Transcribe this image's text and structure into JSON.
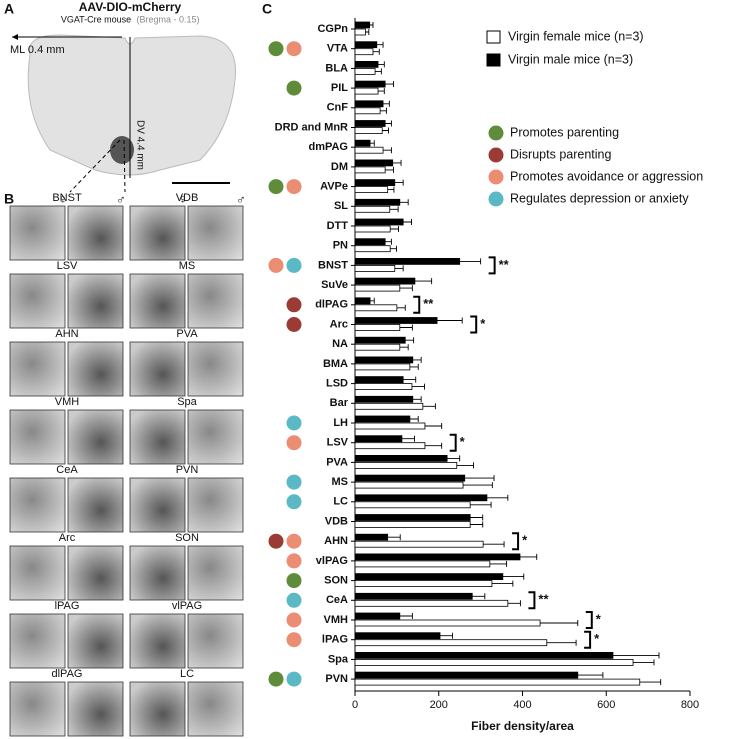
{
  "panels": {
    "a": "A",
    "b": "B",
    "c": "C"
  },
  "brain": {
    "title": "AAV-DIO-mCherry",
    "subtitle": "VGAT-Cre mouse",
    "bregma": "(Bregma - 0.15)",
    "ml": "ML 0.4 mm",
    "dv": "DV 4.4 mm"
  },
  "micrographs": [
    "BNST",
    "VDB",
    "LSV",
    "MS",
    "AHN",
    "PVA",
    "VMH",
    "Spa",
    "CeA",
    "PVN",
    "Arc",
    "SON",
    "lPAG",
    "vlPAG",
    "dlPAG",
    "LC"
  ],
  "sex_symbols": [
    "♀",
    "♂"
  ],
  "chart_data": {
    "type": "hbar",
    "x_label": "Fiber density/area",
    "categories": [
      "CGPn",
      "VTA",
      "BLA",
      "PIL",
      "CnF",
      "DRD and MnR",
      "dmPAG",
      "DM",
      "AVPe",
      "SL",
      "DTT",
      "PN",
      "BNST",
      "SuVe",
      "dlPAG",
      "Arc",
      "NA",
      "BMA",
      "LSD",
      "Bar",
      "LH",
      "LSV",
      "PVA",
      "MS",
      "LC",
      "VDB",
      "AHN",
      "vlPAG",
      "SON",
      "CeA",
      "VMH",
      "lPAG",
      "Spa",
      "PVN"
    ],
    "series": [
      {
        "name": "Virgin male mice (n=3)",
        "color": "#000000",
        "values": [
          35,
          52,
          55,
          72,
          67,
          72,
          36,
          90,
          95,
          107,
          115,
          72,
          250,
          143,
          36,
          196,
          120,
          138,
          115,
          138,
          131,
          112,
          220,
          262,
          315,
          275,
          78,
          394,
          353,
          280,
          107,
          203,
          616,
          532
        ],
        "errors": [
          8,
          15,
          15,
          20,
          15,
          15,
          10,
          20,
          20,
          20,
          20,
          15,
          50,
          40,
          10,
          60,
          20,
          20,
          30,
          20,
          20,
          30,
          30,
          70,
          50,
          30,
          30,
          40,
          50,
          30,
          30,
          30,
          110,
          60
        ]
      },
      {
        "name": "Virgin female mice (n=3)",
        "color": "#ffffff",
        "values": [
          25,
          43,
          48,
          55,
          60,
          65,
          67,
          72,
          78,
          83,
          84,
          84,
          95,
          107,
          100,
          107,
          107,
          131,
          136,
          162,
          167,
          167,
          243,
          258,
          275,
          275,
          306,
          322,
          327,
          365,
          442,
          458,
          664,
          680
        ],
        "errors": [
          8,
          15,
          15,
          15,
          15,
          15,
          20,
          20,
          15,
          20,
          20,
          15,
          20,
          30,
          20,
          30,
          20,
          20,
          30,
          30,
          40,
          40,
          40,
          70,
          50,
          30,
          50,
          40,
          50,
          30,
          90,
          70,
          50,
          50
        ]
      }
    ],
    "xlim": [
      0,
      800
    ],
    "xticks": [
      0,
      200,
      400,
      600,
      800
    ],
    "annotations": [
      {
        "category": "BNST",
        "label": "**"
      },
      {
        "category": "dlPAG",
        "label": "**"
      },
      {
        "category": "Arc",
        "label": "*"
      },
      {
        "category": "LSV",
        "label": "*"
      },
      {
        "category": "AHN",
        "label": "*"
      },
      {
        "category": "CeA",
        "label": "**"
      },
      {
        "category": "VMH",
        "label": "*"
      },
      {
        "category": "lPAG",
        "label": "*"
      }
    ],
    "roles": [
      {
        "name": "Promotes parenting",
        "color": "#5f8c3a"
      },
      {
        "name": "Disrupts parenting",
        "color": "#9a3b34"
      },
      {
        "name": "Promotes avoidance or aggression",
        "color": "#ea8d72"
      },
      {
        "name": "Regulates depression or anxiety",
        "color": "#5bb9c5"
      }
    ],
    "markers": [
      {
        "category": "VTA",
        "roles": [
          "Promotes parenting",
          "Promotes avoidance or aggression"
        ]
      },
      {
        "category": "PIL",
        "roles": [
          "Promotes parenting"
        ]
      },
      {
        "category": "AVPe",
        "roles": [
          "Promotes parenting",
          "Promotes avoidance or aggression"
        ]
      },
      {
        "category": "BNST",
        "roles": [
          "Promotes avoidance or aggression",
          "Regulates depression or anxiety"
        ]
      },
      {
        "category": "dlPAG",
        "roles": [
          "Disrupts parenting"
        ]
      },
      {
        "category": "Arc",
        "roles": [
          "Disrupts parenting"
        ]
      },
      {
        "category": "LH",
        "roles": [
          "Regulates depression or anxiety"
        ]
      },
      {
        "category": "LSV",
        "roles": [
          "Promotes avoidance or aggression"
        ]
      },
      {
        "category": "MS",
        "roles": [
          "Regulates depression or anxiety"
        ]
      },
      {
        "category": "LC",
        "roles": [
          "Regulates depression or anxiety"
        ]
      },
      {
        "category": "AHN",
        "roles": [
          "Disrupts parenting",
          "Promotes avoidance or aggression"
        ]
      },
      {
        "category": "vlPAG",
        "roles": [
          "Promotes avoidance or aggression"
        ]
      },
      {
        "category": "SON",
        "roles": [
          "Promotes parenting"
        ]
      },
      {
        "category": "CeA",
        "roles": [
          "Regulates depression or anxiety"
        ]
      },
      {
        "category": "VMH",
        "roles": [
          "Promotes avoidance or aggression"
        ]
      },
      {
        "category": "lPAG",
        "roles": [
          "Promotes avoidance or aggression"
        ]
      },
      {
        "category": "PVN",
        "roles": [
          "Promotes parenting",
          "Regulates depression or anxiety"
        ]
      }
    ]
  }
}
